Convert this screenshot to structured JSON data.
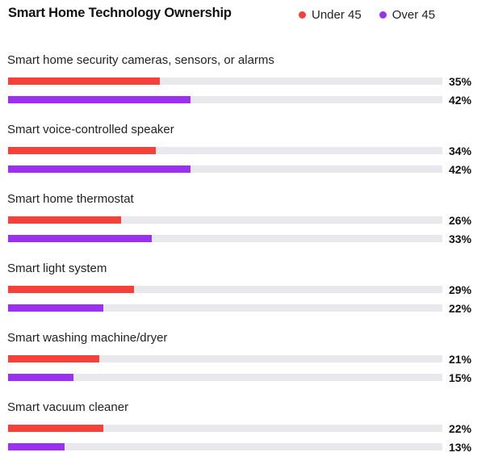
{
  "chart_data": {
    "type": "bar",
    "orientation": "horizontal",
    "title": "Smart Home Technology Ownership",
    "categories": [
      "Smart home security cameras, sensors, or alarms",
      "Smart voice-controlled speaker",
      "Smart home thermostat",
      "Smart light system",
      "Smart washing machine/dryer",
      "Smart vacuum cleaner"
    ],
    "series": [
      {
        "name": "Under 45",
        "color": "#f5413a",
        "values": [
          35,
          34,
          26,
          29,
          21,
          22
        ],
        "labels": [
          "35%",
          "34%",
          "26%",
          "29%",
          "21%",
          "22%"
        ]
      },
      {
        "name": "Over 45",
        "color": "#9b30f0",
        "values": [
          42,
          42,
          33,
          22,
          15,
          13
        ],
        "labels": [
          "42%",
          "42%",
          "33%",
          "22%",
          "15%",
          "13%"
        ]
      }
    ],
    "xlim": [
      0,
      100
    ],
    "value_suffix": "%",
    "legend_position": "top-right",
    "grid": false
  }
}
